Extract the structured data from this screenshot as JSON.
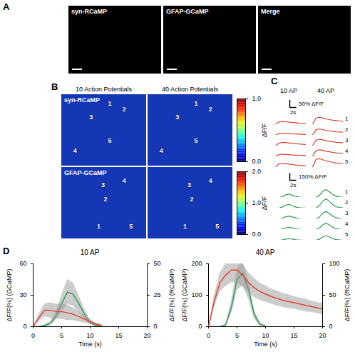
{
  "chart_data": [
    {
      "type": "image",
      "panel_label": "A",
      "images": [
        {
          "title": "syn-RCaMP"
        },
        {
          "title": "GFAP-GCaMP"
        },
        {
          "title": "Merge"
        }
      ]
    },
    {
      "type": "heatmap",
      "panel_label": "B",
      "columns": [
        "10 Action Potentials",
        "40 Action Potentials"
      ],
      "rows": [
        {
          "title": "syn-RCaMP",
          "roi_labels": [
            "1",
            "2",
            "3",
            "4",
            "5"
          ],
          "colorbar": {
            "label": "ΔF/F",
            "range": [
              0,
              1
            ],
            "ticks": [
              0,
              1
            ],
            "colors": [
              "#00007f",
              "#0000ff",
              "#007fff",
              "#00ffff",
              "#7fff7f",
              "#ffff00",
              "#ff7f00",
              "#ff0000",
              "#7f0000"
            ]
          }
        },
        {
          "title": "GFAP-GCaMP",
          "roi_labels": [
            "1",
            "2",
            "3",
            "4",
            "5"
          ],
          "colorbar": {
            "label": "ΔF/F",
            "range": [
              0,
              2
            ],
            "ticks": [
              0,
              1,
              2
            ],
            "colors": [
              "#00007f",
              "#0000ff",
              "#007fff",
              "#00ffff",
              "#7fff7f",
              "#ffff00",
              "#ff7f00",
              "#ff0000",
              "#7f0000"
            ]
          }
        }
      ]
    },
    {
      "type": "traces",
      "panel_label": "C",
      "columns": [
        "10 AP",
        "40 AP"
      ],
      "tick_labels": false,
      "x": [
        0,
        1,
        2,
        3,
        4,
        5,
        6,
        7,
        8,
        9,
        10
      ],
      "xlim": [
        0,
        10
      ],
      "groups": [
        {
          "color": "#e0402e",
          "ylim": [
            0,
            65
          ],
          "scale_bars": {
            "y": {
              "value": 50,
              "label": "50% ΔF/F"
            },
            "x": {
              "value": 2,
              "label": "2s"
            }
          },
          "traces": [
            {
              "label": "1",
              "values": [
                [
                  0,
                  0,
                  18,
                  22,
                  20,
                  17,
                  15,
                  13,
                  11,
                  10,
                  9
                ],
                [
                  0,
                  0,
                  45,
                  52,
                  46,
                  40,
                  35,
                  31,
                  28,
                  25,
                  23
                ]
              ]
            },
            {
              "label": "2",
              "values": [
                [
                  0,
                  0,
                  12,
                  15,
                  14,
                  12,
                  10,
                  9,
                  8,
                  7,
                  6
                ],
                [
                  0,
                  0,
                  38,
                  45,
                  40,
                  35,
                  31,
                  28,
                  25,
                  23,
                  21
                ]
              ]
            },
            {
              "label": "3",
              "values": [
                [
                  0,
                  0,
                  20,
                  26,
                  24,
                  21,
                  18,
                  16,
                  14,
                  12,
                  11
                ],
                [
                  0,
                  0,
                  40,
                  48,
                  43,
                  37,
                  33,
                  29,
                  26,
                  24,
                  22
                ]
              ]
            },
            {
              "label": "4",
              "values": [
                [
                  0,
                  0,
                  15,
                  18,
                  16,
                  14,
                  12,
                  11,
                  10,
                  9,
                  8
                ],
                [
                  0,
                  0,
                  42,
                  50,
                  44,
                  38,
                  34,
                  30,
                  27,
                  25,
                  23
                ]
              ]
            },
            {
              "label": "5",
              "values": [
                [
                  0,
                  0,
                  25,
                  30,
                  27,
                  23,
                  20,
                  17,
                  15,
                  13,
                  12
                ],
                [
                  0,
                  0,
                  55,
                  62,
                  54,
                  46,
                  40,
                  35,
                  31,
                  28,
                  26
                ]
              ]
            }
          ]
        },
        {
          "color": "#2e9b4e",
          "ylim": [
            0,
            200
          ],
          "scale_bars": {
            "y": {
              "value": 150,
              "label": "150% ΔF/F"
            },
            "x": {
              "value": 2,
              "label": "2s"
            }
          },
          "traces": [
            {
              "label": "1",
              "values": [
                [
                  0,
                  0,
                  0,
                  15,
                  55,
                  70,
                  45,
                  20,
                  8,
                  3,
                  0
                ],
                [
                  0,
                  0,
                  0,
                  40,
                  130,
                  170,
                  120,
                  60,
                  25,
                  10,
                  4
                ]
              ]
            },
            {
              "label": "2",
              "values": [
                [
                  0,
                  0,
                  0,
                  20,
                  65,
                  80,
                  50,
                  22,
                  9,
                  4,
                  1
                ],
                [
                  0,
                  0,
                  0,
                  50,
                  150,
                  200,
                  140,
                  70,
                  30,
                  12,
                  5
                ]
              ]
            },
            {
              "label": "3",
              "values": [
                [
                  0,
                  0,
                  0,
                  12,
                  45,
                  60,
                  40,
                  18,
                  7,
                  2,
                  0
                ],
                [
                  0,
                  0,
                  0,
                  35,
                  120,
                  160,
                  110,
                  55,
                  22,
                  9,
                  3
                ]
              ]
            },
            {
              "label": "4",
              "values": [
                [
                  0,
                  0,
                  0,
                  10,
                  35,
                  50,
                  32,
                  15,
                  6,
                  2,
                  0
                ],
                [
                  0,
                  0,
                  0,
                  30,
                  100,
                  140,
                  95,
                  45,
                  18,
                  7,
                  2
                ]
              ]
            },
            {
              "label": "5",
              "values": [
                [
                  0,
                  0,
                  0,
                  8,
                  25,
                  35,
                  24,
                  10,
                  4,
                  1,
                  0
                ],
                [
                  0,
                  0,
                  0,
                  20,
                  70,
                  100,
                  70,
                  32,
                  13,
                  5,
                  2
                ]
              ]
            }
          ]
        }
      ]
    },
    {
      "type": "line",
      "panel_label": "D",
      "title": "10 AP",
      "x": [
        0,
        1,
        2,
        3,
        4,
        5,
        6,
        7,
        8,
        9,
        10,
        11,
        12
      ],
      "xlim": [
        0,
        20
      ],
      "xticks": [
        0,
        5,
        10,
        15,
        20
      ],
      "xlabel": "Time (s)",
      "ylim": [
        0,
        60
      ],
      "yticks": [
        0,
        30,
        60
      ],
      "ylabel": "ΔF/F(%) (GCaMP)",
      "y2lim": [
        0,
        50
      ],
      "y2ticks": [
        0,
        25,
        50
      ],
      "y2label": "ΔF/F(%) (RCaMP)",
      "series": [
        {
          "color": "#2e9b57",
          "values": [
            0,
            0,
            1,
            3,
            10,
            22,
            33,
            31,
            22,
            12,
            4,
            1,
            0
          ],
          "error": [
            0,
            0,
            1,
            2,
            4,
            8,
            12,
            11,
            8,
            5,
            2,
            1,
            0
          ]
        },
        {
          "color": "#e5432d",
          "axis": "y2",
          "values": [
            0,
            7,
            13,
            13,
            12,
            12,
            11,
            10,
            8,
            6,
            4,
            2,
            1
          ],
          "error": [
            0,
            3,
            5,
            6,
            6,
            6,
            6,
            5,
            4,
            3,
            2,
            1,
            1
          ]
        }
      ]
    },
    {
      "type": "line",
      "title": "40 AP",
      "x": [
        0,
        1,
        2,
        3,
        4,
        5,
        6,
        7,
        8,
        9,
        10,
        11,
        12,
        13,
        14,
        15,
        16,
        17,
        18,
        19,
        20
      ],
      "xlim": [
        0,
        20
      ],
      "xticks": [
        0,
        5,
        10,
        15,
        20
      ],
      "xlabel": "Time (s)",
      "ylim": [
        0,
        200
      ],
      "yticks": [
        0,
        100,
        200
      ],
      "ylabel": "ΔF/F(%) (GCaMP)",
      "y2lim": [
        0,
        100
      ],
      "y2ticks": [
        0,
        50,
        100
      ],
      "y2label": "ΔF/F(%) (RCaMP)",
      "series": [
        {
          "color": "#2e9b57",
          "values": [
            0,
            0,
            0,
            5,
            60,
            150,
            170,
            120,
            40,
            8,
            2,
            null,
            null,
            null,
            null,
            null,
            null,
            null,
            null,
            null,
            null
          ],
          "error": [
            0,
            0,
            0,
            3,
            20,
            35,
            40,
            30,
            15,
            5,
            1,
            null,
            null,
            null,
            null,
            null,
            null,
            null,
            null,
            null,
            null
          ]
        },
        {
          "color": "#e5432d",
          "axis": "y2",
          "values": [
            0,
            40,
            70,
            82,
            90,
            90,
            82,
            70,
            62,
            56,
            52,
            48,
            45,
            42,
            40,
            38,
            36,
            34,
            32,
            30,
            28
          ],
          "error": [
            0,
            10,
            15,
            18,
            20,
            20,
            18,
            16,
            15,
            14,
            13,
            12,
            12,
            11,
            11,
            10,
            10,
            10,
            9,
            9,
            9
          ]
        }
      ]
    }
  ]
}
